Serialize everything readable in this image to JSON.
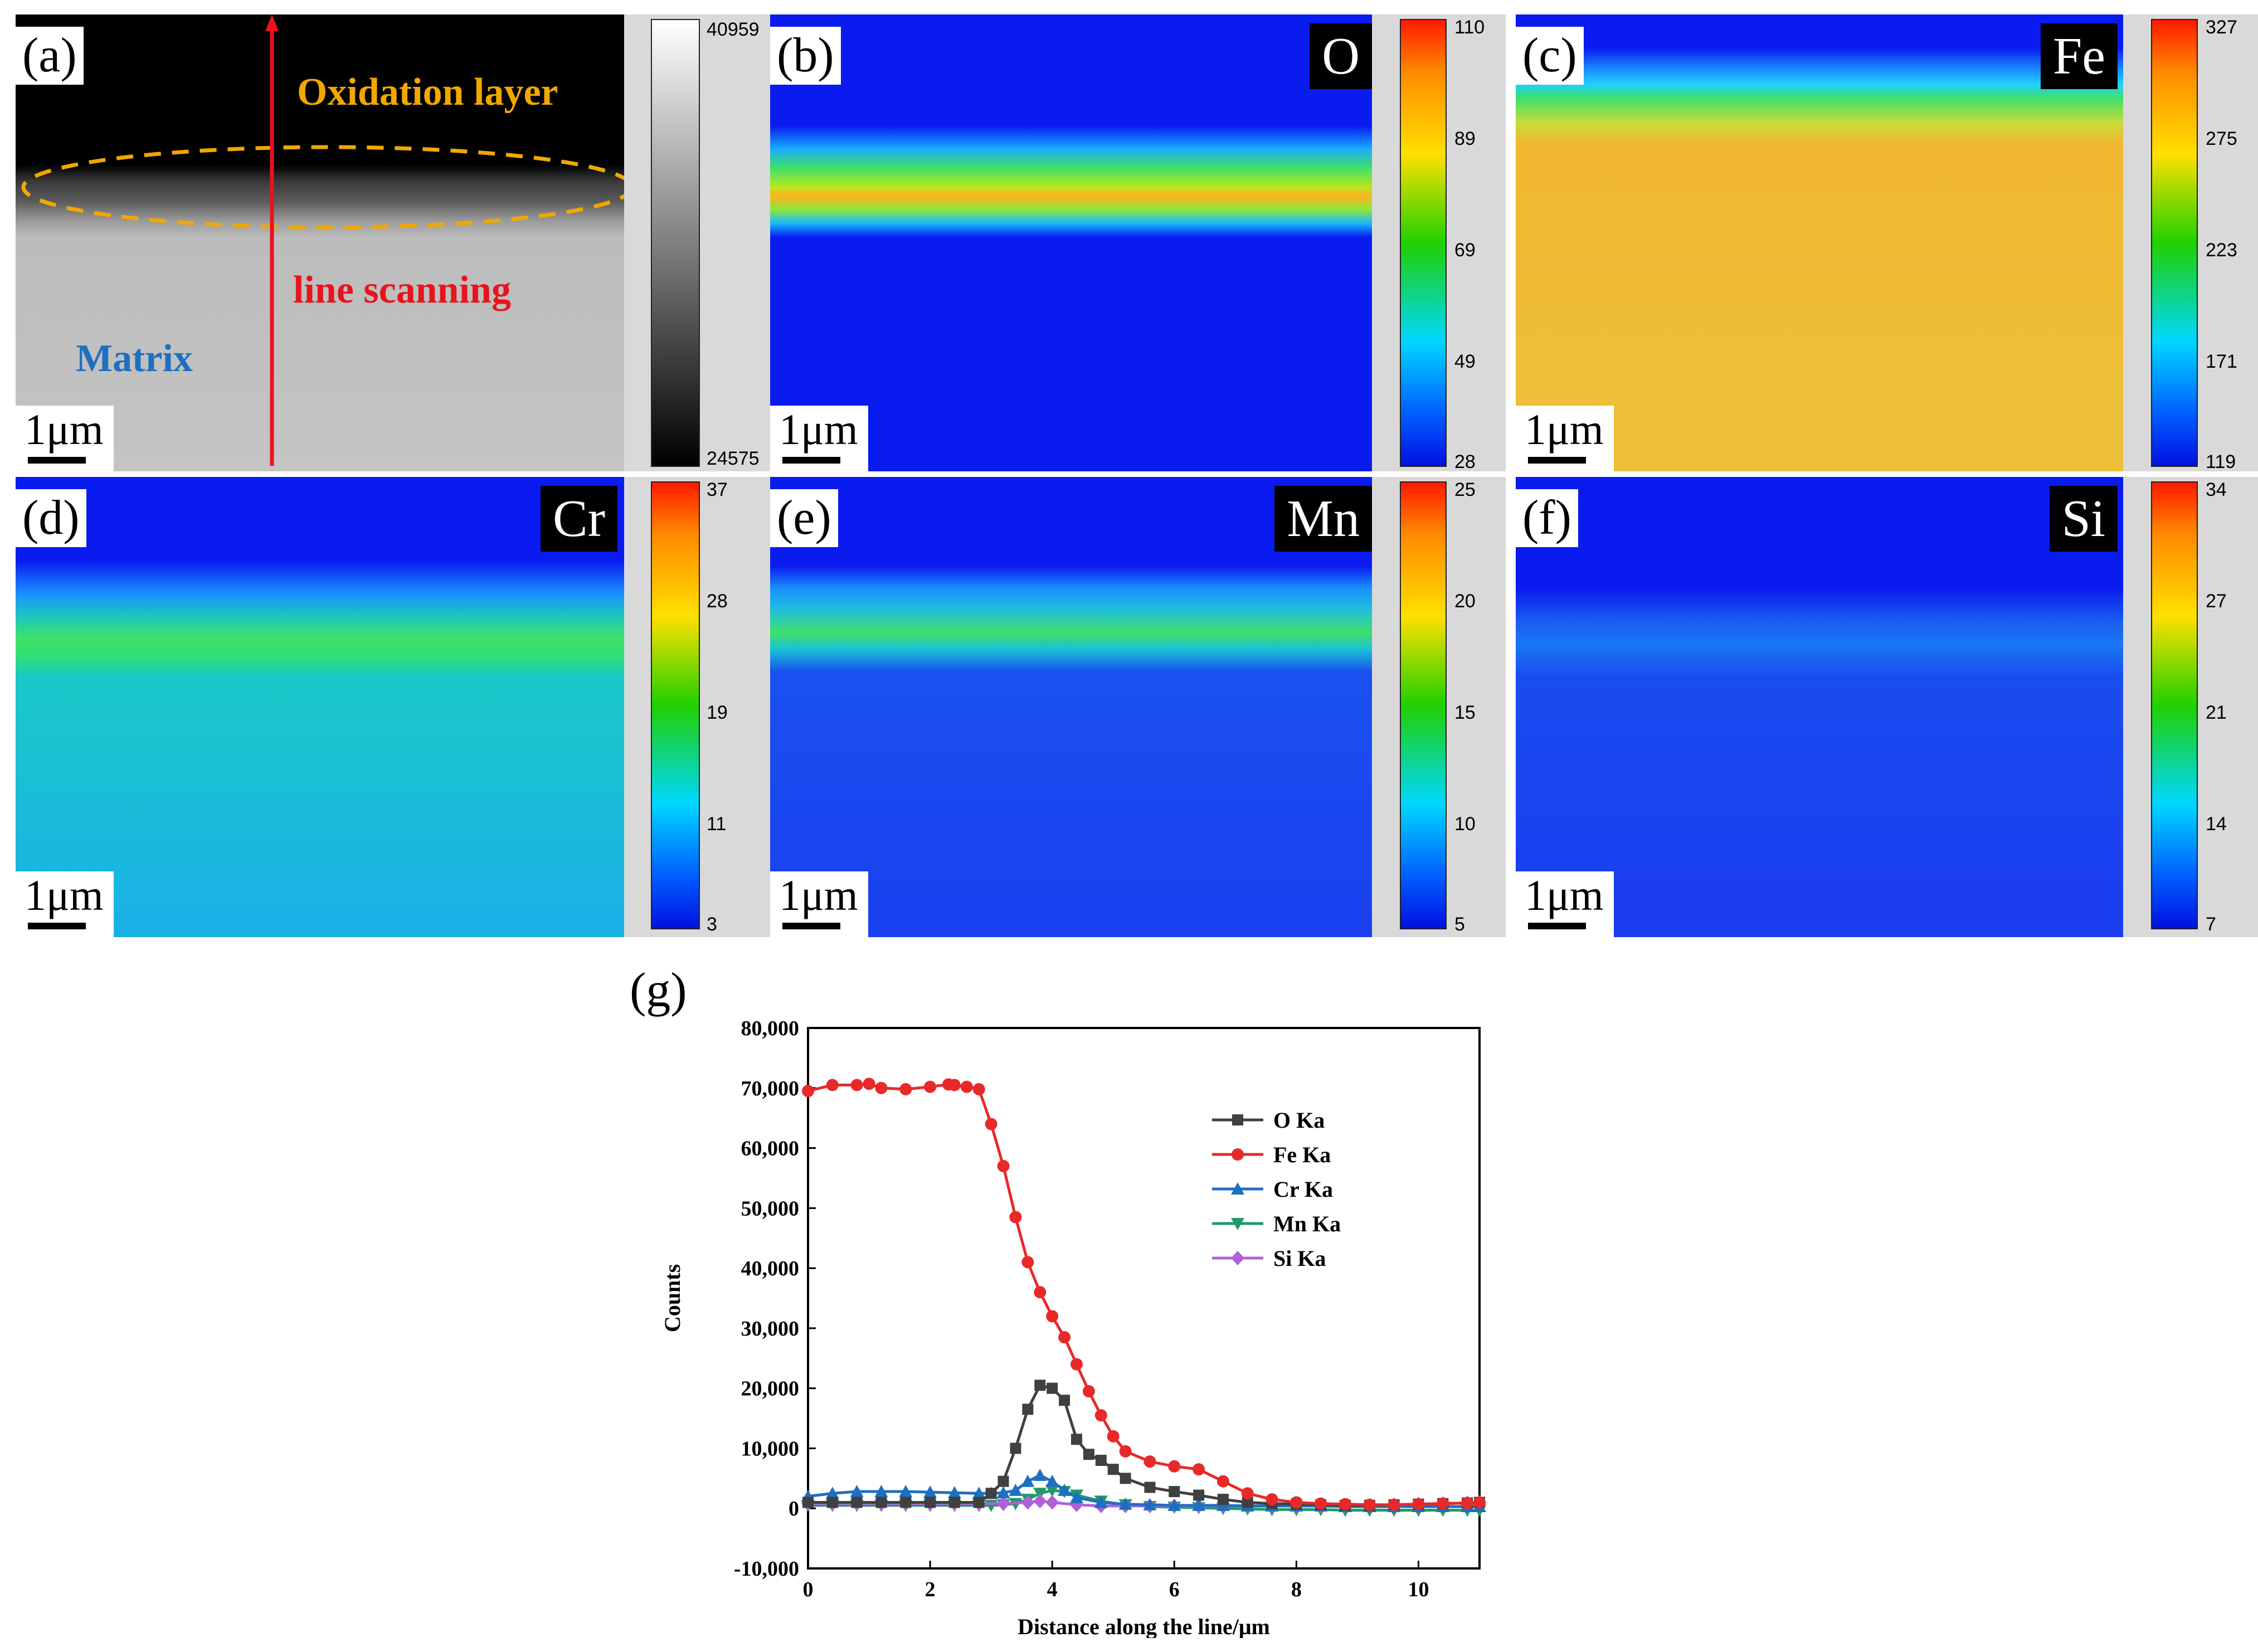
{
  "panels": {
    "a": {
      "label": "(a)",
      "scale": "1μm",
      "annotations": {
        "oxidation": "Oxidation layer",
        "scan": "line scanning",
        "matrix": "Matrix"
      },
      "colors": {
        "oxidation": "#f0a800",
        "scan": "#e8141c",
        "matrix": "#1f6fc0"
      },
      "colorbar": {
        "max": "40959",
        "min": "24575"
      }
    },
    "b": {
      "label": "(b)",
      "element": "O",
      "scale": "1μm",
      "colorbar": {
        "ticks": [
          "110",
          "89",
          "69",
          "49",
          "28"
        ]
      }
    },
    "c": {
      "label": "(c)",
      "element": "Fe",
      "scale": "1μm",
      "colorbar": {
        "ticks": [
          "327",
          "275",
          "223",
          "171",
          "119"
        ]
      }
    },
    "d": {
      "label": "(d)",
      "element": "Cr",
      "scale": "1μm",
      "colorbar": {
        "ticks": [
          "37",
          "28",
          "19",
          "11",
          "3"
        ]
      }
    },
    "e": {
      "label": "(e)",
      "element": "Mn",
      "scale": "1μm",
      "colorbar": {
        "ticks": [
          "25",
          "20",
          "15",
          "10",
          "5"
        ]
      }
    },
    "f": {
      "label": "(f)",
      "element": "Si",
      "scale": "1μm",
      "colorbar": {
        "ticks": [
          "34",
          "27",
          "21",
          "14",
          "7"
        ]
      }
    },
    "g": {
      "label": "(g)"
    }
  },
  "chart_data": {
    "type": "line",
    "title": "",
    "xlabel": "Distance along the line/μm",
    "ylabel": "Counts",
    "xlim": [
      0,
      11
    ],
    "ylim": [
      -10000,
      80000
    ],
    "xticks": [
      0,
      2,
      4,
      6,
      8,
      10
    ],
    "yticks": [
      -10000,
      0,
      10000,
      20000,
      30000,
      40000,
      50000,
      60000,
      70000,
      80000
    ],
    "ytick_labels": [
      "-10,000",
      "0",
      "10,000",
      "20,000",
      "30,000",
      "40,000",
      "50,000",
      "60,000",
      "70,000",
      "80,000"
    ],
    "legend_position": "right, upper middle",
    "series": [
      {
        "name": "O Ka",
        "color": "#404040",
        "marker": "square",
        "x": [
          0,
          0.4,
          0.8,
          1.2,
          1.6,
          2.0,
          2.4,
          2.8,
          3.0,
          3.2,
          3.4,
          3.6,
          3.8,
          4.0,
          4.2,
          4.4,
          4.6,
          4.8,
          5.0,
          5.2,
          5.6,
          6.0,
          6.4,
          6.8,
          7.2,
          7.6,
          8.0,
          8.4,
          8.8,
          9.2,
          9.6,
          10.0,
          10.4,
          10.8,
          11.0
        ],
        "y": [
          1000,
          1000,
          1000,
          1000,
          1000,
          1000,
          1000,
          1000,
          2500,
          4500,
          10000,
          16500,
          20500,
          20000,
          18000,
          11500,
          9000,
          8000,
          6500,
          5000,
          3500,
          2800,
          2200,
          1500,
          1000,
          800,
          700,
          600,
          500,
          500,
          600,
          700,
          800,
          900,
          1000
        ]
      },
      {
        "name": "Fe Ka",
        "color": "#e8292a",
        "marker": "circle",
        "x": [
          0,
          0.4,
          0.8,
          1.0,
          1.2,
          1.6,
          2.0,
          2.3,
          2.4,
          2.6,
          2.8,
          3.0,
          3.2,
          3.4,
          3.6,
          3.8,
          4.0,
          4.2,
          4.4,
          4.6,
          4.8,
          5.0,
          5.2,
          5.6,
          6.0,
          6.4,
          6.8,
          7.2,
          7.6,
          8.0,
          8.4,
          8.8,
          9.2,
          9.6,
          10.0,
          10.4,
          10.8,
          11.0
        ],
        "y": [
          69500,
          70500,
          70500,
          70700,
          70000,
          69800,
          70200,
          70600,
          70500,
          70200,
          69800,
          64000,
          57000,
          48500,
          41000,
          36000,
          32000,
          28500,
          24000,
          19500,
          15500,
          12000,
          9500,
          7800,
          7000,
          6500,
          4500,
          2500,
          1500,
          1000,
          800,
          700,
          600,
          600,
          700,
          800,
          900,
          1000
        ]
      },
      {
        "name": "Cr Ka",
        "color": "#1f6fc0",
        "marker": "triangle-up",
        "x": [
          0,
          0.4,
          0.8,
          1.2,
          1.6,
          2.0,
          2.4,
          2.8,
          3.0,
          3.2,
          3.4,
          3.6,
          3.8,
          4.0,
          4.2,
          4.4,
          4.8,
          5.2,
          5.6,
          6.0,
          6.4,
          6.8,
          7.2,
          7.6,
          8.0,
          8.4,
          8.8,
          9.2,
          9.6,
          10.0,
          10.4,
          10.8,
          11.0
        ],
        "y": [
          2000,
          2500,
          2800,
          2800,
          2800,
          2700,
          2600,
          2500,
          2500,
          2600,
          3000,
          4500,
          5500,
          4500,
          3000,
          1800,
          1000,
          700,
          600,
          500,
          500,
          500,
          400,
          400,
          400,
          400,
          300,
          300,
          300,
          300,
          300,
          300,
          300
        ]
      },
      {
        "name": "Mn Ka",
        "color": "#1f9a6a",
        "marker": "triangle-down",
        "x": [
          0,
          0.4,
          0.8,
          1.2,
          1.6,
          2.0,
          2.4,
          2.8,
          3.0,
          3.2,
          3.4,
          3.6,
          3.8,
          4.0,
          4.2,
          4.4,
          4.8,
          5.2,
          5.6,
          6.0,
          6.4,
          6.8,
          7.2,
          7.6,
          8.0,
          8.4,
          8.8,
          9.2,
          9.6,
          10.0,
          10.4,
          10.8,
          11.0
        ],
        "y": [
          500,
          500,
          500,
          500,
          500,
          500,
          500,
          500,
          500,
          600,
          800,
          1500,
          2500,
          3000,
          2800,
          2200,
          1200,
          600,
          300,
          200,
          100,
          0,
          -100,
          -200,
          -200,
          -200,
          -300,
          -300,
          -300,
          -300,
          -300,
          -300,
          -300
        ]
      },
      {
        "name": "Si Ka",
        "color": "#b061d8",
        "marker": "diamond",
        "x": [
          0,
          0.4,
          0.8,
          1.2,
          1.6,
          2.0,
          2.4,
          2.8,
          3.2,
          3.6,
          3.8,
          4.0,
          4.4,
          4.8,
          5.2,
          5.6,
          6.0,
          6.4,
          6.8,
          7.2,
          7.6,
          8.0,
          8.4,
          8.8,
          9.2,
          9.6,
          10.0,
          10.4,
          10.8,
          11.0
        ],
        "y": [
          800,
          800,
          800,
          800,
          800,
          800,
          800,
          800,
          800,
          1000,
          1200,
          1000,
          600,
          400,
          400,
          400,
          400,
          400,
          400,
          400,
          400,
          400,
          400,
          400,
          500,
          600,
          700,
          800,
          900,
          1000
        ]
      }
    ]
  }
}
